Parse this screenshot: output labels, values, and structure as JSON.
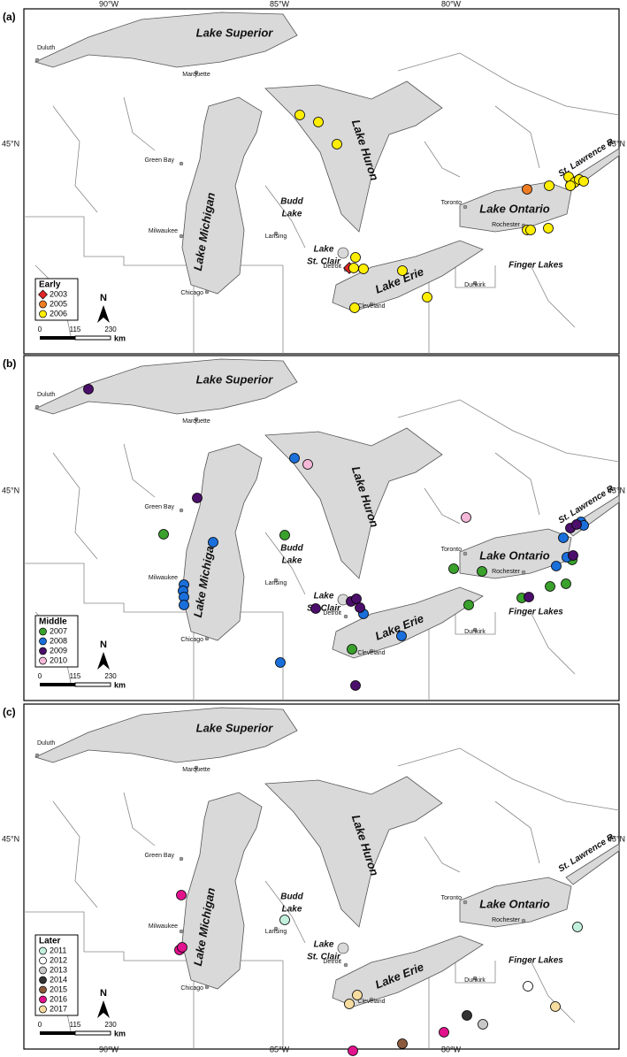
{
  "panels": [
    {
      "label": "(a)",
      "legend": {
        "title": "Early",
        "entries": [
          {
            "year": "2003",
            "color": "#e0262a",
            "marker": "diamond"
          },
          {
            "year": "2005",
            "color": "#f07d23",
            "marker": "circle"
          },
          {
            "year": "2006",
            "color": "#ffee00",
            "marker": "circle"
          }
        ]
      }
    },
    {
      "label": "(b)",
      "legend": {
        "title": "Middle",
        "entries": [
          {
            "year": "2007",
            "color": "#3aa12c",
            "marker": "circle"
          },
          {
            "year": "2008",
            "color": "#1a6fdb",
            "marker": "circle"
          },
          {
            "year": "2009",
            "color": "#4b0f6b",
            "marker": "circle"
          },
          {
            "year": "2010",
            "color": "#f5b8d8",
            "marker": "circle"
          }
        ]
      }
    },
    {
      "label": "(c)",
      "legend": {
        "title": "Later",
        "entries": [
          {
            "year": "2011",
            "color": "#c2f0dc",
            "marker": "circle"
          },
          {
            "year": "2012",
            "color": "#ffffff",
            "marker": "circle"
          },
          {
            "year": "2013",
            "color": "#c8c8c8",
            "marker": "circle"
          },
          {
            "year": "2014",
            "color": "#333333",
            "marker": "circle"
          },
          {
            "year": "2015",
            "color": "#8b5a3c",
            "marker": "circle"
          },
          {
            "year": "2016",
            "color": "#e2128d",
            "marker": "circle"
          },
          {
            "year": "2017",
            "color": "#f7dca0",
            "marker": "circle"
          }
        ]
      }
    }
  ],
  "lakes": [
    "Lake Superior",
    "Lake Michigan",
    "Lake Huron",
    "Lake Erie",
    "Lake Ontario"
  ],
  "small_labels": [
    [
      "Lake",
      "St. Clair"
    ],
    [
      "Budd",
      "Lake"
    ],
    [
      "Finger Lakes"
    ],
    [
      "St. Lawrence R."
    ]
  ],
  "cities": [
    "Duluth",
    "Marquette",
    "Green Bay",
    "Milwaukee",
    "Chicago",
    "Lansing",
    "Detroit",
    "Cleveland",
    "Toronto",
    "Rochester",
    "Dunkirk"
  ],
  "longitude_labels": [
    "90°W",
    "85°W",
    "80°W"
  ],
  "latitude_label": "45°N",
  "scale": {
    "ticks": [
      "0",
      "115",
      "230"
    ],
    "unit": "km"
  },
  "north": "N"
}
